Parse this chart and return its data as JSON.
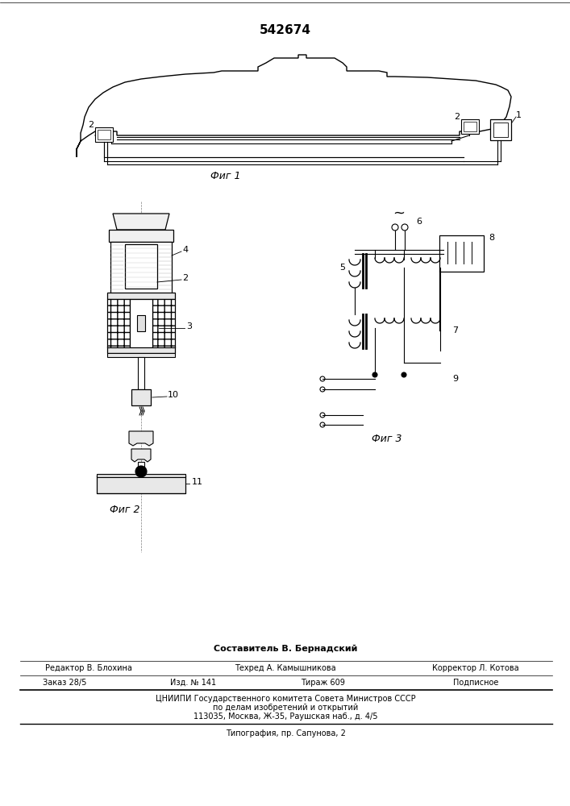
{
  "patent_number": "542674",
  "bg_color": "#ffffff",
  "line_color": "#000000",
  "fig_width": 7.07,
  "fig_height": 10.0,
  "footer": {
    "composer": "Составитель В. Бернадский",
    "editor": "Редактор В. Блохина",
    "techred": "Техред А. Камышникова",
    "corrector": "Корректор Л. Котова",
    "order": "Заказ 28/5",
    "izd": "Изд. № 141",
    "tirazh": "Тираж 609",
    "podpisnoe": "Подписное",
    "cniipи": "ЦНИИПИ Государственного комитета Совета Министров СССР",
    "po_delam": "по делам изобретений и открытий",
    "address": "113035, Москва, Ж-35, Раушская наб., д. 4/5",
    "tipografia": "Типография, пр. Сапунова, 2"
  },
  "fig1_label": "Фиг 1",
  "fig2_label": "Фиг 2",
  "fig3_label": "Фиг 3"
}
